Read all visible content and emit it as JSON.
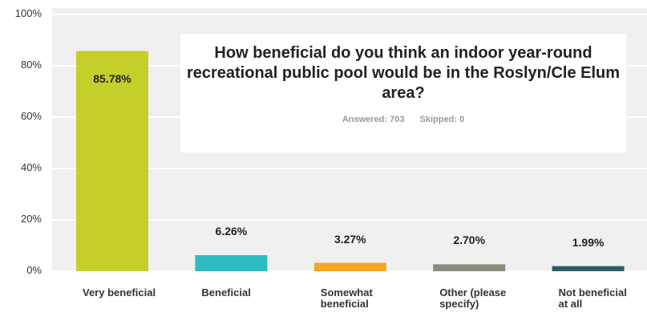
{
  "chart_data": {
    "type": "bar",
    "title": "How beneficial do you think an indoor year-round recreational public pool would be in the Roslyn/Cle Elum area?",
    "answered": "Answered: 703",
    "skipped": "Skipped: 0",
    "categories": [
      "Very beneficial",
      "Beneficial",
      "Somewhat beneficial",
      "Other (please specify)",
      "Not beneficial at all"
    ],
    "values": [
      85.78,
      6.26,
      3.27,
      2.7,
      1.99
    ],
    "value_labels": [
      "85.78%",
      "6.26%",
      "3.27%",
      "2.70%",
      "1.99%"
    ],
    "colors": [
      "#c5cf2b",
      "#2ebcc2",
      "#f5a623",
      "#8b8c7c",
      "#2c5d66"
    ],
    "ylim": [
      0,
      100
    ],
    "yticks": [
      {
        "value": 0,
        "label": "0%"
      },
      {
        "value": 20,
        "label": "20%"
      },
      {
        "value": 40,
        "label": "40%"
      },
      {
        "value": 60,
        "label": "60%"
      },
      {
        "value": 80,
        "label": "80%"
      },
      {
        "value": 100,
        "label": "100%"
      }
    ],
    "grid": true
  }
}
